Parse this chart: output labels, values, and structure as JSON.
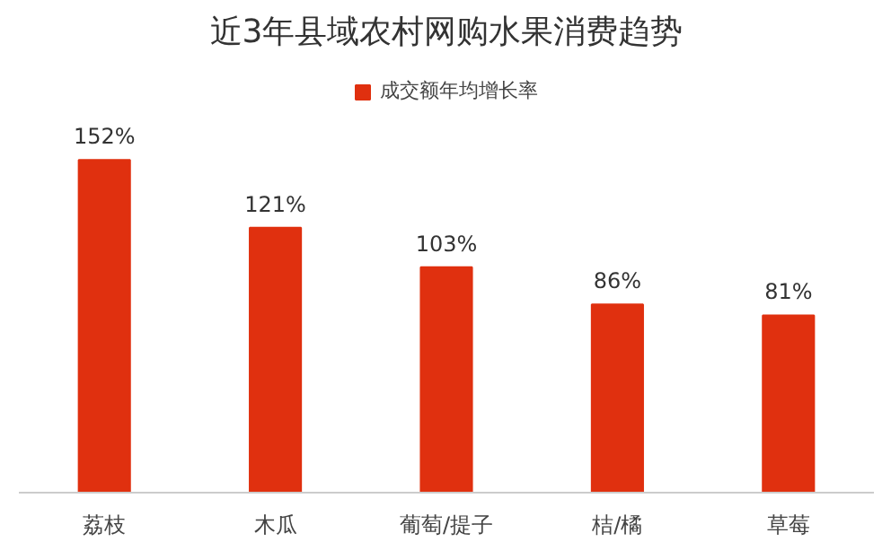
{
  "chart_data": {
    "type": "bar",
    "title": "近3年县域农村网购水果消费趋势",
    "categories": [
      "荔枝",
      "木瓜",
      "葡萄/提子",
      "桔/橘",
      "草莓"
    ],
    "series": [
      {
        "name": "成交额年均增长率",
        "color": "#e0300f",
        "values": [
          152,
          121,
          103,
          86,
          81
        ],
        "value_labels": [
          "152%",
          "121%",
          "103%",
          "86%",
          "81%"
        ]
      }
    ],
    "legend": "top",
    "grid": false
  }
}
